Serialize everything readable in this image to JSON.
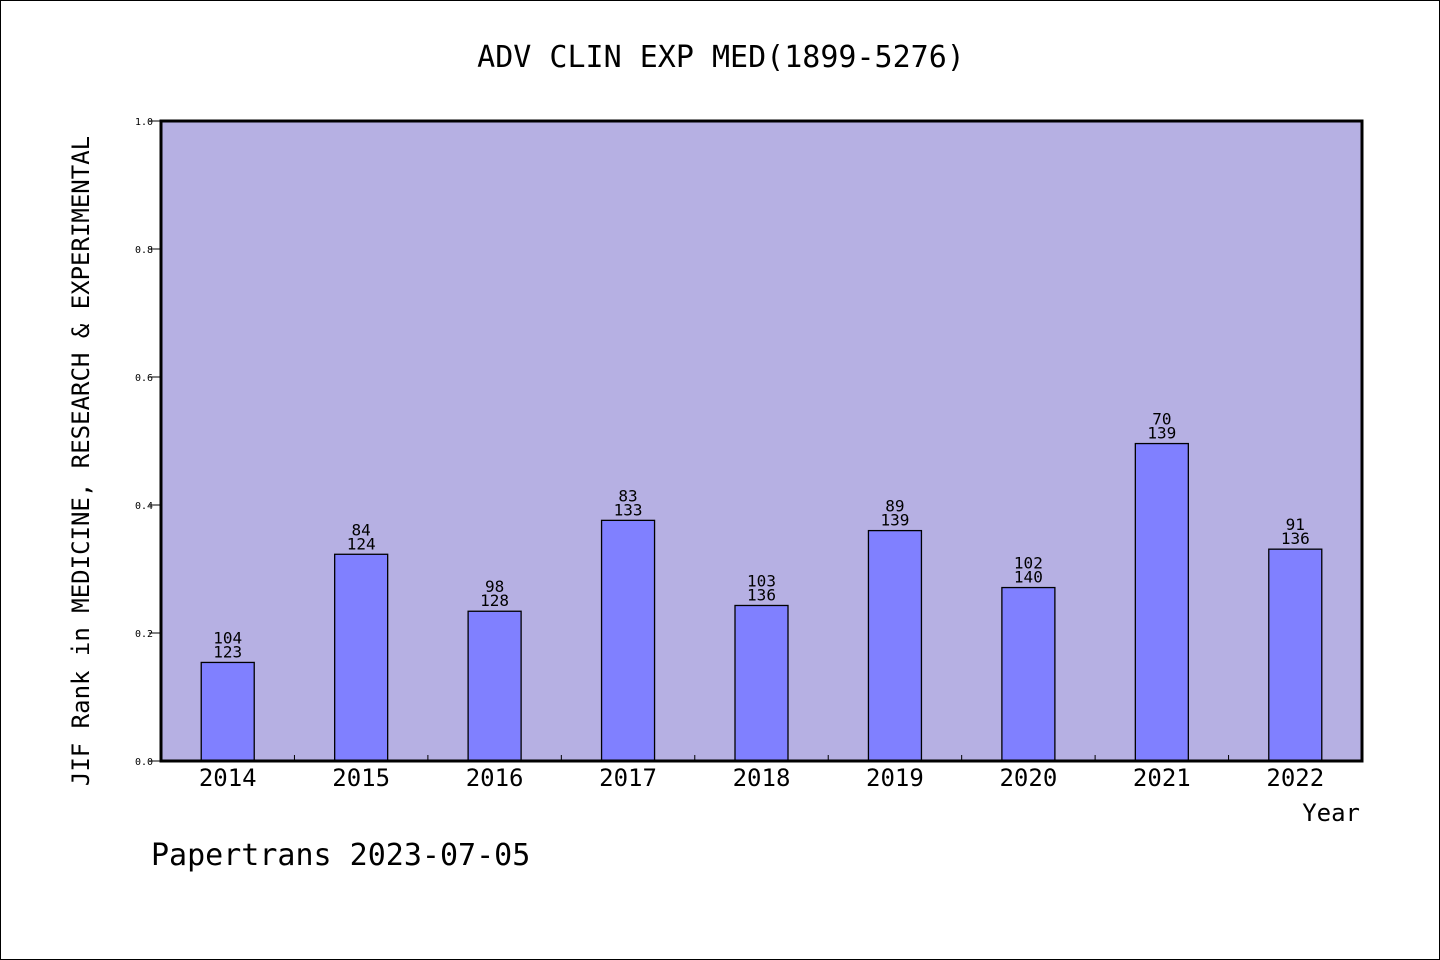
{
  "chart_data": {
    "type": "bar",
    "title": "ADV CLIN EXP MED(1899-5276)",
    "xlabel": "Year",
    "ylabel": "JIF Rank in MEDICINE, RESEARCH & EXPERIMENTAL",
    "ylim": [
      0,
      1.0
    ],
    "yticks": [
      "0.0",
      "0.2",
      "0.4",
      "0.6",
      "0.8",
      "1.0"
    ],
    "categories": [
      "2014",
      "2015",
      "2016",
      "2017",
      "2018",
      "2019",
      "2020",
      "2021",
      "2022"
    ],
    "ranks": [
      104,
      84,
      98,
      83,
      103,
      89,
      102,
      70,
      91
    ],
    "totals": [
      123,
      124,
      128,
      133,
      136,
      139,
      140,
      139,
      136
    ],
    "values": [
      0.154,
      0.323,
      0.234,
      0.376,
      0.243,
      0.36,
      0.271,
      0.496,
      0.331
    ],
    "grid": false,
    "colors": {
      "background": "#b6b0e3",
      "bar": "#8080ff",
      "bar_edge": "#000000"
    }
  },
  "footer": "Papertrans 2023-07-05"
}
